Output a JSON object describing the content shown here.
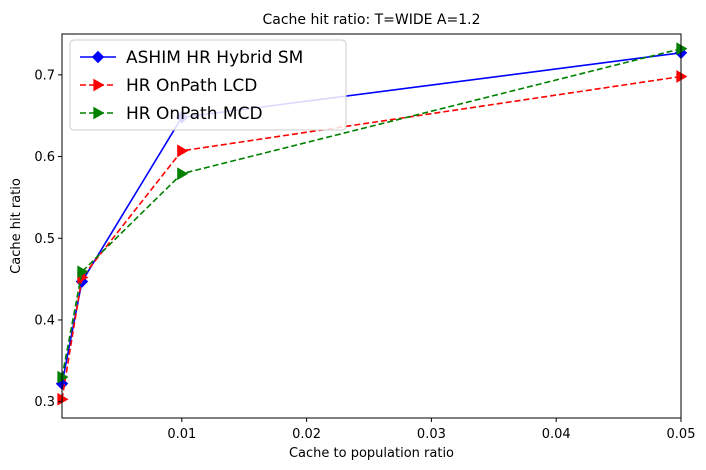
{
  "chart_data": {
    "type": "line",
    "title": "Cache hit ratio: T=WIDE A=1.2",
    "xlabel": "Cache to population ratio",
    "ylabel": "Cache hit ratio",
    "xlim": [
      0.0004,
      0.05
    ],
    "ylim": [
      0.28,
      0.75
    ],
    "x_scale": "categorical",
    "x": [
      0.0004,
      0.002,
      0.01,
      0.05
    ],
    "xticks": [
      0.01,
      0.02,
      0.03,
      0.04,
      0.05
    ],
    "xtick_labels": [
      "0.01",
      "0.02",
      "0.03",
      "0.04",
      "0.05"
    ],
    "yticks": [
      0.3,
      0.4,
      0.5,
      0.6,
      0.7
    ],
    "ytick_labels": [
      "0.3",
      "0.4",
      "0.5",
      "0.6",
      "0.7"
    ],
    "grid": false,
    "legend_position": "top-left",
    "series": [
      {
        "name": "ASHIM HR Hybrid SM",
        "color": "#0000ff",
        "line_style": "solid",
        "marker": "diamond",
        "values": [
          0.322,
          0.447,
          0.648,
          0.727
        ]
      },
      {
        "name": "HR OnPath LCD",
        "color": "#ff0000",
        "line_style": "dashed",
        "marker": "triangle-right",
        "values": [
          0.303,
          0.452,
          0.607,
          0.698
        ]
      },
      {
        "name": "HR OnPath MCD",
        "color": "#008000",
        "line_style": "dashed",
        "marker": "triangle-right",
        "values": [
          0.33,
          0.459,
          0.579,
          0.732
        ]
      }
    ]
  }
}
